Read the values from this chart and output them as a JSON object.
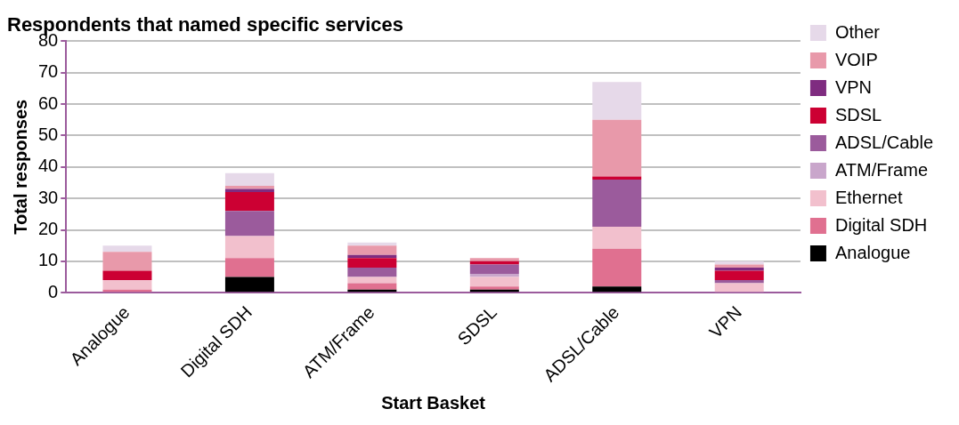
{
  "chart_data": {
    "type": "bar",
    "title": "Respondents that named specific services",
    "xlabel": "Start Basket",
    "ylabel": "Total responses",
    "categories": [
      "Analogue",
      "Digital SDH",
      "ATM/Frame",
      "SDSL",
      "ADSL/Cable",
      "VPN"
    ],
    "stacked": true,
    "ylim": [
      0,
      80
    ],
    "yticks": [
      0,
      10,
      20,
      30,
      40,
      50,
      60,
      70,
      80
    ],
    "grid": "y",
    "legend": "right",
    "series": [
      {
        "name": "Analogue",
        "color": "#000000",
        "values": [
          0,
          5,
          1,
          1,
          2,
          0
        ]
      },
      {
        "name": "Digital SDH",
        "color": "#e07090",
        "values": [
          1,
          6,
          2,
          1,
          12,
          0
        ]
      },
      {
        "name": "Ethernet",
        "color": "#f2c0cd",
        "values": [
          3,
          7,
          2,
          3,
          7,
          3
        ]
      },
      {
        "name": "ATM/Frame",
        "color": "#c9a6cb",
        "values": [
          0,
          0,
          0,
          1,
          0,
          0
        ]
      },
      {
        "name": "ADSL/Cable",
        "color": "#9b5b9c",
        "values": [
          0,
          8,
          3,
          3,
          15,
          1
        ]
      },
      {
        "name": "SDSL",
        "color": "#cc0033",
        "values": [
          3,
          6,
          3,
          1,
          1,
          3
        ]
      },
      {
        "name": "VPN",
        "color": "#7f2c80",
        "values": [
          0,
          1,
          1,
          0,
          0,
          1
        ]
      },
      {
        "name": "VOIP",
        "color": "#e899aa",
        "values": [
          6,
          1,
          3,
          1,
          18,
          1
        ]
      },
      {
        "name": "Other",
        "color": "#e6d9e9",
        "values": [
          2,
          4,
          1,
          0,
          12,
          1
        ]
      }
    ]
  }
}
